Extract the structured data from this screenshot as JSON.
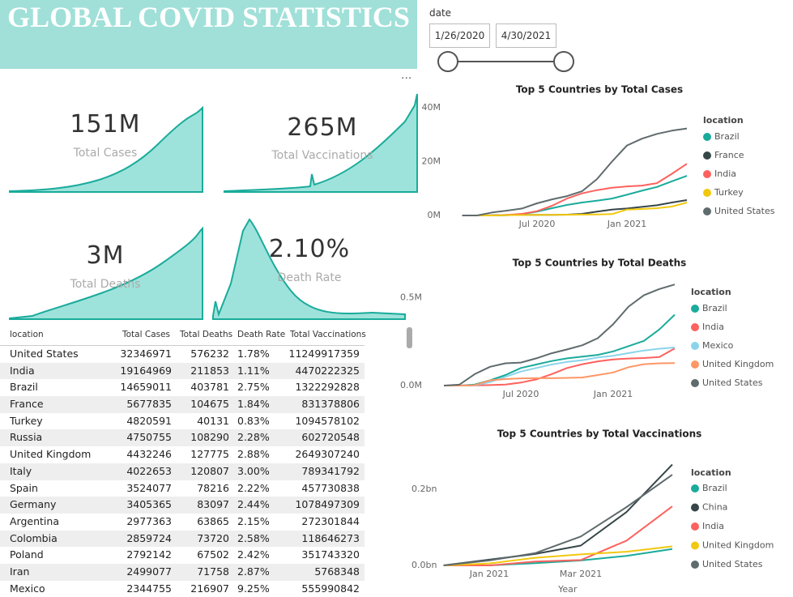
{
  "header": {
    "title": "GLOBAL COVID STATISTICS"
  },
  "slicer": {
    "label": "date",
    "start": "1/26/2020",
    "end": "4/30/2021"
  },
  "kpis": [
    {
      "value": "151M",
      "label": "Total Cases"
    },
    {
      "value": "265M",
      "label": "Total Vaccinations"
    },
    {
      "value": "3M",
      "label": "Total Deaths"
    },
    {
      "value": "2.10%",
      "label": "Death Rate"
    }
  ],
  "table": {
    "columns": [
      "location",
      "Total Cases",
      "Total Deaths",
      "Death Rate",
      "Total Vaccinations"
    ],
    "rows": [
      [
        "United States",
        "32346971",
        "576232",
        "1.78%",
        "11249917359"
      ],
      [
        "India",
        "19164969",
        "211853",
        "1.11%",
        "4470222325"
      ],
      [
        "Brazil",
        "14659011",
        "403781",
        "2.75%",
        "1322292828"
      ],
      [
        "France",
        "5677835",
        "104675",
        "1.84%",
        "831378806"
      ],
      [
        "Turkey",
        "4820591",
        "40131",
        "0.83%",
        "1094578102"
      ],
      [
        "Russia",
        "4750755",
        "108290",
        "2.28%",
        "602720548"
      ],
      [
        "United Kingdom",
        "4432246",
        "127775",
        "2.88%",
        "2649307240"
      ],
      [
        "Italy",
        "4022653",
        "120807",
        "3.00%",
        "789341792"
      ],
      [
        "Spain",
        "3524077",
        "78216",
        "2.22%",
        "457730838"
      ],
      [
        "Germany",
        "3405365",
        "83097",
        "2.44%",
        "1078497309"
      ],
      [
        "Argentina",
        "2977363",
        "63865",
        "2.15%",
        "272301844"
      ],
      [
        "Colombia",
        "2859724",
        "73720",
        "2.58%",
        "118646273"
      ],
      [
        "Poland",
        "2792142",
        "67502",
        "2.42%",
        "351743320"
      ],
      [
        "Iran",
        "2499077",
        "71758",
        "2.87%",
        "5768348"
      ],
      [
        "Mexico",
        "2344755",
        "216907",
        "9.25%",
        "555990842"
      ]
    ]
  },
  "chart_data": [
    {
      "type": "line",
      "title": "Top 5 Countries by Total Cases",
      "legend_title": "location",
      "legend": "right",
      "grid": false,
      "x": [
        "2020-02",
        "2020-03",
        "2020-04",
        "2020-05",
        "2020-06",
        "2020-07",
        "2020-08",
        "2020-09",
        "2020-10",
        "2020-11",
        "2020-12",
        "2021-01",
        "2021-02",
        "2021-03",
        "2021-04",
        "2021-05"
      ],
      "xlim": [
        "2020-01",
        "2021-05"
      ],
      "xticks": [
        {
          "value": "2020-07",
          "label": "Jul 2020"
        },
        {
          "value": "2021-01",
          "label": "Jan 2021"
        }
      ],
      "ylim": [
        0,
        40000000
      ],
      "yticks": [
        {
          "value": 0,
          "label": "0M"
        },
        {
          "value": 20000000,
          "label": "20M"
        },
        {
          "value": 40000000,
          "label": "40M"
        }
      ],
      "series": [
        {
          "name": "Brazil",
          "color": "#1aab9b",
          "values": [
            0,
            0,
            6000,
            90000,
            500000,
            1400000,
            2700000,
            3900000,
            4800000,
            5500000,
            6300000,
            7700000,
            9200000,
            10600000,
            12700000,
            14700000
          ]
        },
        {
          "name": "France",
          "color": "#374649",
          "values": [
            0,
            0,
            50000,
            170000,
            190000,
            200000,
            230000,
            300000,
            600000,
            1400000,
            2200000,
            2600000,
            3200000,
            3800000,
            4800000,
            5700000
          ]
        },
        {
          "name": "India",
          "color": "#fd625e",
          "values": [
            0,
            0,
            0,
            200000,
            600000,
            1600000,
            3600000,
            6300000,
            8200000,
            9400000,
            10300000,
            10800000,
            11100000,
            12000000,
            15500000,
            19200000
          ]
        },
        {
          "name": "Turkey",
          "color": "#f2c80f",
          "values": [
            0,
            0,
            0,
            120000,
            160000,
            200000,
            230000,
            270000,
            320000,
            370000,
            500000,
            2200000,
            2400000,
            2700000,
            3300000,
            4800000
          ]
        },
        {
          "name": "United States",
          "color": "#5f6b6d",
          "values": [
            0,
            0,
            1100000,
            1800000,
            2600000,
            4500000,
            6000000,
            7200000,
            9000000,
            13500000,
            20000000,
            26000000,
            28500000,
            30300000,
            31500000,
            32300000
          ]
        }
      ]
    },
    {
      "type": "line",
      "title": "Top 5 Countries by Total Deaths",
      "legend_title": "location",
      "legend": "right",
      "grid": false,
      "x": [
        "2020-02",
        "2020-03",
        "2020-04",
        "2020-05",
        "2020-06",
        "2020-07",
        "2020-08",
        "2020-09",
        "2020-10",
        "2020-11",
        "2020-12",
        "2021-01",
        "2021-02",
        "2021-03",
        "2021-04",
        "2021-05"
      ],
      "xlim": [
        "2020-01",
        "2021-05"
      ],
      "xticks": [
        {
          "value": "2020-07",
          "label": "Jul 2020"
        },
        {
          "value": "2021-01",
          "label": "Jan 2021"
        }
      ],
      "ylim": [
        0,
        600000
      ],
      "yticks": [
        {
          "value": 0,
          "label": "0.0M"
        },
        {
          "value": 500000,
          "label": "0.5M"
        }
      ],
      "series": [
        {
          "name": "Brazil",
          "color": "#1aab9b",
          "values": [
            0,
            0,
            6000,
            30000,
            60000,
            100000,
            120000,
            140000,
            155000,
            165000,
            175000,
            195000,
            225000,
            255000,
            320000,
            404000
          ]
        },
        {
          "name": "India",
          "color": "#fd625e",
          "values": [
            0,
            0,
            1000,
            3000,
            6000,
            17000,
            35000,
            65000,
            100000,
            122000,
            138000,
            149000,
            154000,
            157000,
            163000,
            212000
          ]
        },
        {
          "name": "Mexico",
          "color": "#8ad4eb",
          "values": [
            0,
            0,
            1000,
            20000,
            50000,
            80000,
            100000,
            120000,
            135000,
            145000,
            160000,
            170000,
            185000,
            200000,
            210000,
            217000
          ]
        },
        {
          "name": "United Kingdom",
          "color": "#fe9666",
          "values": [
            0,
            0,
            2000,
            30000,
            37000,
            41000,
            42000,
            42000,
            44000,
            46000,
            60000,
            75000,
            105000,
            122000,
            127000,
            128000
          ]
        },
        {
          "name": "United States",
          "color": "#5f6b6d",
          "values": [
            0,
            5000,
            65000,
            107000,
            127000,
            131000,
            155000,
            184000,
            206000,
            230000,
            270000,
            350000,
            450000,
            515000,
            550000,
            576000
          ]
        }
      ]
    },
    {
      "type": "line",
      "title": "Top 5 Countries by Total Vaccinations",
      "legend_title": "location",
      "legend": "right",
      "grid": false,
      "x_label": "Year",
      "x": [
        "2020-12",
        "2021-01",
        "2021-02",
        "2021-03",
        "2021-04",
        "2021-05"
      ],
      "xlim": [
        "2020-12",
        "2021-05"
      ],
      "xticks": [
        {
          "value": "2021-01",
          "label": "Jan 2021"
        },
        {
          "value": "2021-03",
          "label": "Mar 2021"
        }
      ],
      "ylim": [
        0,
        270000000
      ],
      "yticks": [
        {
          "value": 0,
          "label": "0.0bn"
        },
        {
          "value": 200000000,
          "label": "0.2bn"
        }
      ],
      "series": [
        {
          "name": "Brazil",
          "color": "#1aab9b",
          "values": [
            0,
            0,
            6000000,
            13000000,
            25000000,
            43000000
          ]
        },
        {
          "name": "China",
          "color": "#374649",
          "values": [
            0,
            15000000,
            30000000,
            52000000,
            140000000,
            265000000
          ]
        },
        {
          "name": "India",
          "color": "#fd625e",
          "values": [
            0,
            0,
            10000000,
            14000000,
            65000000,
            155000000
          ]
        },
        {
          "name": "United Kingdom",
          "color": "#f2c80f",
          "values": [
            0,
            5000000,
            20000000,
            29000000,
            36000000,
            50000000
          ]
        },
        {
          "name": "United States",
          "color": "#5f6b6d",
          "values": [
            0,
            13000000,
            32000000,
            76000000,
            153000000,
            238000000
          ]
        }
      ]
    }
  ]
}
